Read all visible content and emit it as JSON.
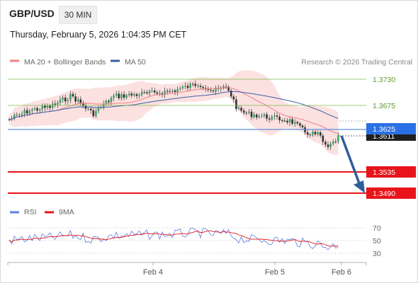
{
  "header": {
    "symbol": "GBP/USD",
    "interval": "30 MIN",
    "datetime": "Thursday, February 5, 2026 1:04:35 PM CET"
  },
  "legend": {
    "ma20": "MA 20 + Bollinger Bands",
    "ma50": "MA 50",
    "rsi": "RSI",
    "ma9": "9MA"
  },
  "watermark": "Research © 2026 Trading Central",
  "colors": {
    "ma20": "#f08080",
    "ma50": "#3a5fa5",
    "bollinger_fill": "#fbd9d9",
    "resistance": "#7dbb46",
    "pivot": "#5b8fe0",
    "support": "#e8141a",
    "current_price": "#1a1a1a",
    "arrow": "#2f5e9e",
    "rsi": "#5b7fe0",
    "rsi_ma": "#e8141a"
  },
  "levels": [
    {
      "label": "1.3730",
      "type": "resistance",
      "value": 1.373
    },
    {
      "label": "1.3675",
      "type": "resistance",
      "value": 1.3675
    },
    {
      "label": "1.3625",
      "type": "pivot",
      "value": 1.3625
    },
    {
      "label": "1.3611",
      "type": "current",
      "value": 1.3611
    },
    {
      "label": "1.3535",
      "type": "support",
      "value": 1.3535
    },
    {
      "label": "1.3490",
      "type": "support",
      "value": 1.349
    }
  ],
  "x_axis": {
    "labels": [
      "Feb 4",
      "Feb 5",
      "Feb 6"
    ]
  },
  "rsi_axis": {
    "labels": [
      "70",
      "50",
      "30"
    ],
    "values": [
      70,
      50,
      30
    ]
  }
}
